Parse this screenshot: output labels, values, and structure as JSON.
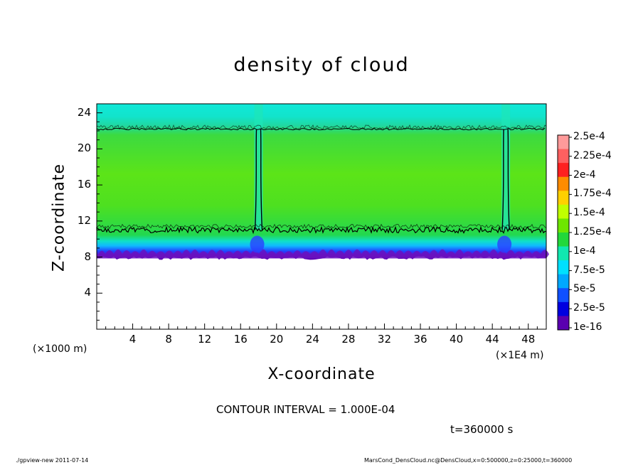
{
  "chart_data": {
    "type": "heatmap",
    "title": "density of cloud",
    "xlabel": "X-coordinate",
    "ylabel": "Z-coordinate",
    "x_multiplier": "(×1E4 m)",
    "y_multiplier": "(×1000 m)",
    "xlim": [
      0,
      50
    ],
    "ylim": [
      0,
      25
    ],
    "x_ticks": [
      "4",
      "8",
      "12",
      "16",
      "20",
      "24",
      "28",
      "32",
      "36",
      "40",
      "44",
      "48"
    ],
    "y_ticks": [
      "4",
      "8",
      "12",
      "16",
      "20",
      "24"
    ],
    "cloud_base_z": 8,
    "lower_contour_z": 11,
    "upper_contour_z": 22.2,
    "plume_columns_x": [
      18,
      45.5
    ],
    "colorbar": {
      "labels": [
        "2.5e-4",
        "2.25e-4",
        "2e-4",
        "1.75e-4",
        "1.5e-4",
        "1.25e-4",
        "1e-4",
        "7.5e-5",
        "5e-5",
        "2.5e-5",
        "1e-16"
      ],
      "colors": [
        "#ff9a9a",
        "#ff6060",
        "#ff2020",
        "#ff8c00",
        "#ffd000",
        "#c0ff00",
        "#6ee600",
        "#22d83a",
        "#10e8b0",
        "#00e0ff",
        "#00a8ff",
        "#1050ff",
        "#0000e0",
        "#5a00b0"
      ]
    }
  },
  "annotations": {
    "contour_interval": "CONTOUR INTERVAL = 1.000E-04",
    "time": "t=360000 s"
  },
  "footer": {
    "left": "./gpview-new  2011-07-14",
    "right": "MarsCond_DensCloud.nc@DensCloud,x=0:500000,z=0:25000,t=360000"
  }
}
